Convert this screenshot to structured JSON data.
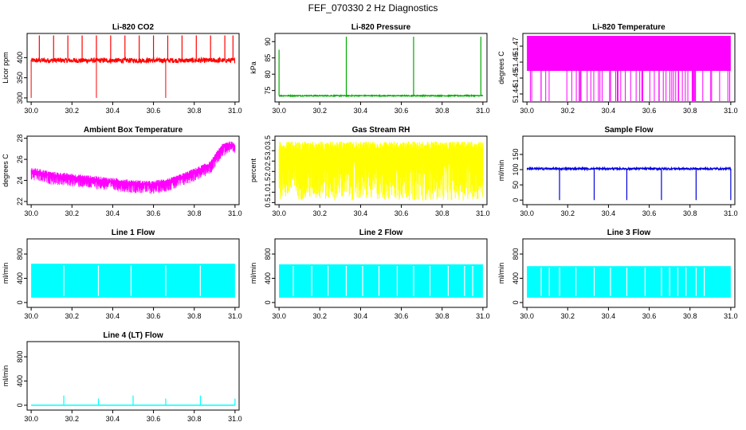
{
  "figure_title": "FEF_070330  2 Hz Diagnostics",
  "chart_data": [
    {
      "type": "line",
      "title": "Li-820 CO2",
      "ylabel": "Licor ppm",
      "color": "#ff0000",
      "xlim": [
        29.98,
        31.02
      ],
      "ylim": [
        290,
        460
      ],
      "xticks": [
        30.0,
        30.2,
        30.4,
        30.6,
        30.8,
        31.0
      ],
      "xtick_labels": [
        "30.0",
        "30.2",
        "30.4",
        "30.6",
        "30.8",
        "31.0"
      ],
      "yticks": [
        300,
        350,
        400
      ],
      "ytick_labels": [
        "300",
        "350",
        "400"
      ],
      "pattern": "co2",
      "baseline": 393,
      "noise": 6,
      "spikes_up": [
        30.04,
        30.11,
        30.18,
        30.25,
        30.32,
        30.39,
        30.46,
        30.53,
        30.6,
        30.67,
        30.74,
        30.81,
        30.88,
        30.95,
        30.99
      ],
      "spike_top": 455,
      "spikes_down": [
        30.0,
        30.32,
        30.66
      ],
      "spike_bottom": 300
    },
    {
      "type": "line",
      "title": "Li-820 Pressure",
      "ylabel": "kPa",
      "color": "#00aa00",
      "xlim": [
        29.98,
        31.02
      ],
      "ylim": [
        71.5,
        92.5
      ],
      "xticks": [
        30.0,
        30.2,
        30.4,
        30.6,
        30.8,
        31.0
      ],
      "xtick_labels": [
        "30.0",
        "30.2",
        "30.4",
        "30.6",
        "30.8",
        "31.0"
      ],
      "yticks": [
        75,
        80,
        85,
        90
      ],
      "ytick_labels": [
        "75",
        "80",
        "85",
        "90"
      ],
      "pattern": "pressure",
      "baseline": 73.4,
      "noise": 0.15,
      "spikes_up": [
        30.0,
        30.33,
        30.66,
        30.99
      ],
      "spike_tops": [
        87.5,
        91.5,
        91.5,
        91.5
      ]
    },
    {
      "type": "line",
      "title": "Li-820 Temperature",
      "ylabel": "degrees C",
      "color": "#ff00ff",
      "xlim": [
        29.98,
        31.02
      ],
      "ylim": [
        51.435,
        51.478
      ],
      "xticks": [
        30.0,
        30.2,
        30.4,
        30.6,
        30.8,
        31.0
      ],
      "xtick_labels": [
        "30.0",
        "30.2",
        "30.4",
        "30.6",
        "30.8",
        "31.0"
      ],
      "yticks": [
        51.44,
        51.45,
        51.46,
        51.47
      ],
      "ytick_labels": [
        "51.44",
        "51.45",
        "51.46",
        "51.47"
      ],
      "pattern": "temperature",
      "band_low": 51.4545,
      "band_high": 51.4765,
      "floor": 51.4355
    },
    {
      "type": "line",
      "title": "Ambient Box Temperature",
      "ylabel": "degrees C",
      "color": "#ff00ff",
      "xlim": [
        29.98,
        31.02
      ],
      "ylim": [
        21.7,
        28.2
      ],
      "xticks": [
        30.0,
        30.2,
        30.4,
        30.6,
        30.8,
        31.0
      ],
      "xtick_labels": [
        "30.0",
        "30.2",
        "30.4",
        "30.6",
        "30.8",
        "31.0"
      ],
      "yticks": [
        22,
        24,
        26,
        28
      ],
      "ytick_labels": [
        "22",
        "24",
        "26",
        "28"
      ],
      "pattern": "ambient",
      "curve_x": [
        30.0,
        30.1,
        30.2,
        30.3,
        30.4,
        30.5,
        30.6,
        30.7,
        30.8,
        30.88,
        30.93,
        30.96,
        31.0
      ],
      "curve_y": [
        24.9,
        24.5,
        24.3,
        24.1,
        23.9,
        23.7,
        23.6,
        24.0,
        24.8,
        25.5,
        27.0,
        27.4,
        27.3
      ]
    },
    {
      "type": "line",
      "title": "Gas Stream RH",
      "ylabel": "percent",
      "color": "#ffff00",
      "xlim": [
        29.98,
        31.02
      ],
      "ylim": [
        0.4,
        3.7
      ],
      "xticks": [
        30.0,
        30.2,
        30.4,
        30.6,
        30.8,
        31.0
      ],
      "xtick_labels": [
        "30.0",
        "30.2",
        "30.4",
        "30.6",
        "30.8",
        "31.0"
      ],
      "yticks": [
        0.5,
        1.0,
        1.5,
        2.0,
        2.5,
        3.0,
        3.5
      ],
      "ytick_labels": [
        "0.5",
        "1.0",
        "1.5",
        "2.0",
        "2.5",
        "3.0",
        "3.5"
      ],
      "pattern": "band",
      "band_low": 0.6,
      "band_high": 3.45
    },
    {
      "type": "line",
      "title": "Sample Flow",
      "ylabel": "ml/min",
      "color": "#0000dd",
      "xlim": [
        29.98,
        31.02
      ],
      "ylim": [
        -15,
        210
      ],
      "xticks": [
        30.0,
        30.2,
        30.4,
        30.6,
        30.8,
        31.0
      ],
      "xtick_labels": [
        "30.0",
        "30.2",
        "30.4",
        "30.6",
        "30.8",
        "31.0"
      ],
      "yticks": [
        0,
        50,
        100,
        150
      ],
      "ytick_labels": [
        "0",
        "50",
        "100",
        "150"
      ],
      "pattern": "sample",
      "baseline": 103,
      "noise": 3,
      "drops": [
        30.16,
        30.33,
        30.49,
        30.66,
        30.83,
        31.0
      ],
      "drop_bottom": 0
    },
    {
      "type": "line",
      "title": "Line 1 Flow",
      "ylabel": "ml/min",
      "color": "#00ffff",
      "xlim": [
        29.98,
        31.02
      ],
      "ylim": [
        -80,
        1050
      ],
      "xticks": [
        30.0,
        30.2,
        30.4,
        30.6,
        30.8,
        31.0
      ],
      "xtick_labels": [
        "30.0",
        "30.2",
        "30.4",
        "30.6",
        "30.8",
        "31.0"
      ],
      "yticks": [
        0,
        400,
        800
      ],
      "ytick_labels": [
        "0",
        "400",
        "800"
      ],
      "pattern": "flowband",
      "band_low": 80,
      "band_high": 640,
      "gaps": [
        30.16,
        30.33,
        30.49,
        30.66,
        30.83
      ]
    },
    {
      "type": "line",
      "title": "Line 2 Flow",
      "ylabel": "ml/min",
      "color": "#00ffff",
      "xlim": [
        29.98,
        31.02
      ],
      "ylim": [
        -80,
        1050
      ],
      "xticks": [
        30.0,
        30.2,
        30.4,
        30.6,
        30.8,
        31.0
      ],
      "xtick_labels": [
        "30.0",
        "30.2",
        "30.4",
        "30.6",
        "30.8",
        "31.0"
      ],
      "yticks": [
        0,
        400,
        800
      ],
      "ytick_labels": [
        "0",
        "400",
        "800"
      ],
      "pattern": "flowband",
      "band_low": 80,
      "band_high": 630,
      "gaps": [
        30.07,
        30.16,
        30.24,
        30.33,
        30.41,
        30.49,
        30.58,
        30.66,
        30.74,
        30.83,
        30.91,
        30.95
      ]
    },
    {
      "type": "line",
      "title": "Line 3 Flow",
      "ylabel": "ml/min",
      "color": "#00ffff",
      "xlim": [
        29.98,
        31.02
      ],
      "ylim": [
        -80,
        1050
      ],
      "xticks": [
        30.0,
        30.2,
        30.4,
        30.6,
        30.8,
        31.0
      ],
      "xtick_labels": [
        "30.0",
        "30.2",
        "30.4",
        "30.6",
        "30.8",
        "31.0"
      ],
      "yticks": [
        0,
        400,
        800
      ],
      "ytick_labels": [
        "0",
        "400",
        "800"
      ],
      "pattern": "flowband",
      "band_low": 80,
      "band_high": 600,
      "gaps": [
        30.07,
        30.11,
        30.16,
        30.24,
        30.33,
        30.41,
        30.49,
        30.58,
        30.66,
        30.7,
        30.74,
        30.78,
        30.83,
        30.87
      ]
    },
    {
      "type": "line",
      "title": "Line 4 (LT) Flow",
      "ylabel": "ml/min",
      "color": "#00ffff",
      "xlim": [
        29.98,
        31.02
      ],
      "ylim": [
        -80,
        1050
      ],
      "xticks": [
        30.0,
        30.2,
        30.4,
        30.6,
        30.8,
        31.0
      ],
      "xtick_labels": [
        "30.0",
        "30.2",
        "30.4",
        "30.6",
        "30.8",
        "31.0"
      ],
      "yticks": [
        0,
        400,
        800
      ],
      "ytick_labels": [
        "0",
        "400",
        "800"
      ],
      "pattern": "lt",
      "baseline": 0,
      "spikes_up": [
        30.16,
        30.33,
        30.5,
        30.66,
        30.83,
        31.0
      ],
      "spike_tops": [
        160,
        110,
        160,
        110,
        160,
        110
      ]
    }
  ]
}
